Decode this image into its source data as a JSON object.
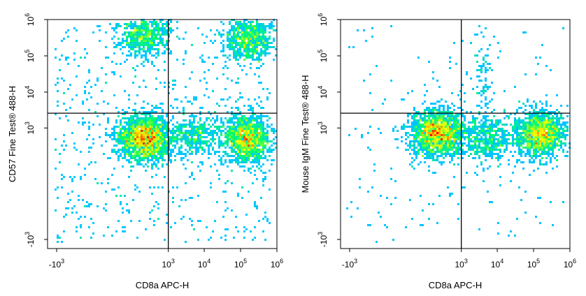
{
  "chart_data": [
    {
      "type": "scatter",
      "subtype": "flow-cytometry-density-plot",
      "title": "",
      "xlabel": "CD8a APC-H",
      "ylabel": "CD57 Fine Test® 488-H",
      "x_scale": "biexponential",
      "y_scale": "biexponential",
      "xlim": [
        "-10^3",
        "10^6"
      ],
      "ylim": [
        "-10^3",
        "10^6"
      ],
      "x_ticks": [
        {
          "label": "-10",
          "exp": "3",
          "value": -1000
        },
        {
          "label": "10",
          "exp": "3",
          "value": 1000
        },
        {
          "label": "10",
          "exp": "4",
          "value": 10000
        },
        {
          "label": "10",
          "exp": "5",
          "value": 100000
        },
        {
          "label": "10",
          "exp": "6",
          "value": 1000000
        }
      ],
      "y_ticks": [
        {
          "label": "-10",
          "exp": "3",
          "value": -1000
        },
        {
          "label": "10",
          "exp": "3",
          "value": 1000
        },
        {
          "label": "10",
          "exp": "4",
          "value": 10000
        },
        {
          "label": "10",
          "exp": "5",
          "value": 100000
        },
        {
          "label": "10",
          "exp": "6",
          "value": 1000000
        }
      ],
      "quadrant_gate": {
        "x": 1000,
        "y": 2600
      },
      "populations": [
        {
          "x": 200,
          "y": 500,
          "relative_density": 1.0
        },
        {
          "x": 150000,
          "y": 500,
          "relative_density": 0.75
        },
        {
          "x": 200,
          "y": 400000,
          "relative_density": 0.35
        },
        {
          "x": 170000,
          "y": 300000,
          "relative_density": 0.4
        },
        {
          "x": 5000,
          "y": 600,
          "relative_density": 0.2
        }
      ],
      "colormap": [
        "#0000ff",
        "#00c8ff",
        "#00ff66",
        "#ffff00",
        "#ff0000"
      ]
    },
    {
      "type": "scatter",
      "subtype": "flow-cytometry-density-plot",
      "title": "",
      "xlabel": "CD8a APC-H",
      "ylabel": "Mouse IgM Fine Test® 488-H",
      "x_scale": "biexponential",
      "y_scale": "biexponential",
      "xlim": [
        "-10^3",
        "10^6"
      ],
      "ylim": [
        "-10^3",
        "10^6"
      ],
      "x_ticks": [
        {
          "label": "-10",
          "exp": "3",
          "value": -1000
        },
        {
          "label": "10",
          "exp": "3",
          "value": 1000
        },
        {
          "label": "10",
          "exp": "4",
          "value": 10000
        },
        {
          "label": "10",
          "exp": "5",
          "value": 100000
        },
        {
          "label": "10",
          "exp": "6",
          "value": 1000000
        }
      ],
      "y_ticks": [
        {
          "label": "-10",
          "exp": "3",
          "value": -1000
        },
        {
          "label": "10",
          "exp": "3",
          "value": 1000
        },
        {
          "label": "10",
          "exp": "4",
          "value": 10000
        },
        {
          "label": "10",
          "exp": "5",
          "value": 100000
        },
        {
          "label": "10",
          "exp": "6",
          "value": 1000000
        }
      ],
      "quadrant_gate": {
        "x": 1000,
        "y": 2600
      },
      "populations": [
        {
          "x": 200,
          "y": 700,
          "relative_density": 1.0
        },
        {
          "x": 150000,
          "y": 700,
          "relative_density": 0.8
        },
        {
          "x": 5000,
          "y": 500,
          "relative_density": 0.25
        },
        {
          "x": 4000,
          "y": 30000,
          "relative_density": 0.02
        }
      ],
      "colormap": [
        "#0000ff",
        "#00c8ff",
        "#00ff66",
        "#ffff00",
        "#ff0000"
      ]
    }
  ]
}
